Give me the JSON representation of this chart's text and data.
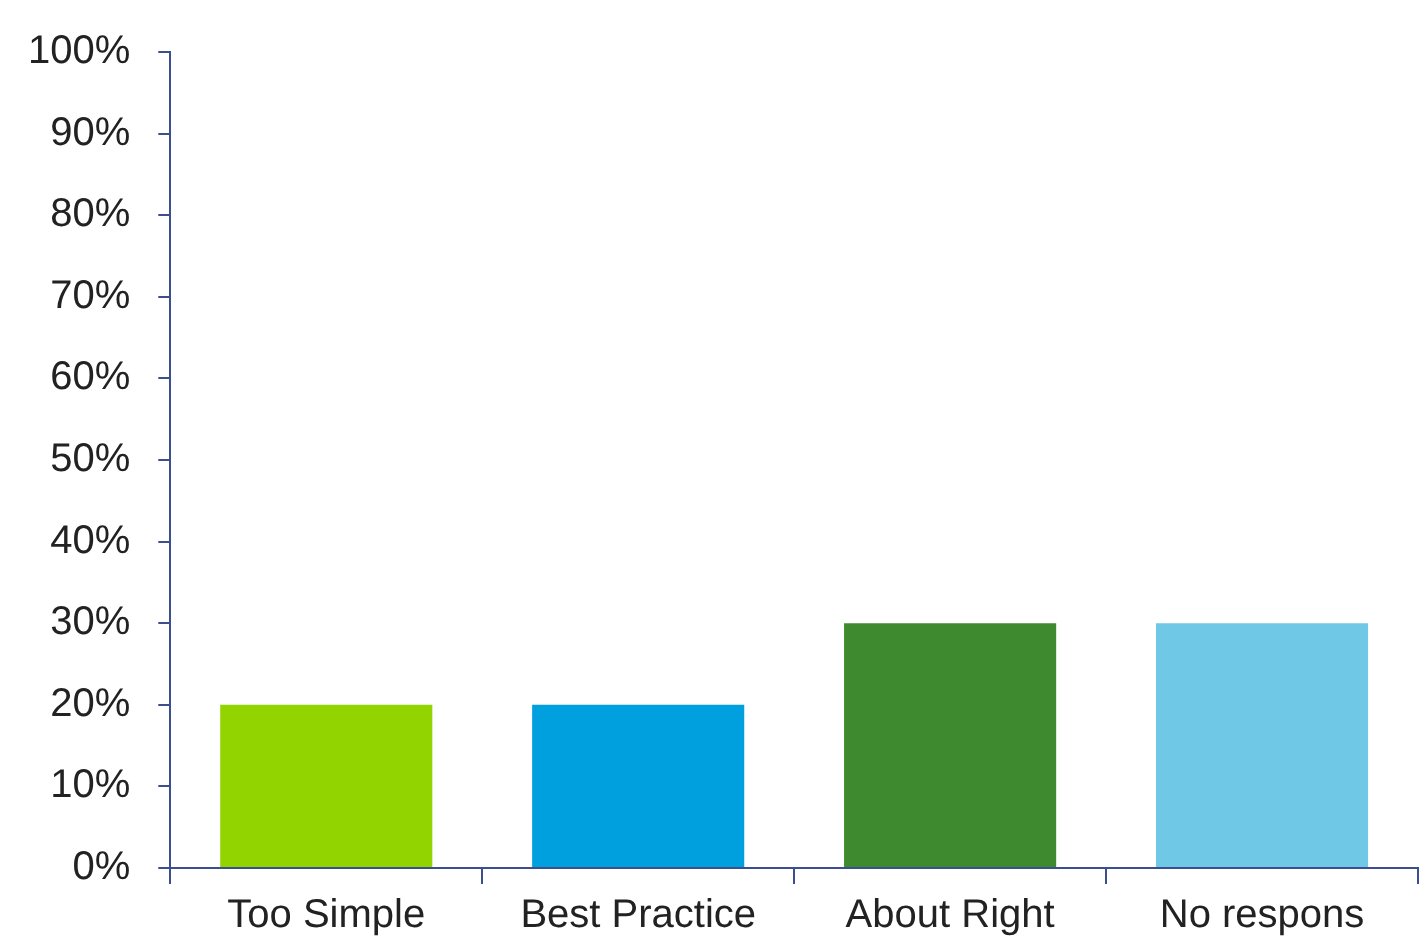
{
  "chart_data": {
    "type": "bar",
    "categories": [
      "Too Simple",
      "Best Practice",
      "About Right",
      "No respons"
    ],
    "values": [
      20,
      20,
      30,
      30
    ],
    "colors": [
      "#92d400",
      "#00a0df",
      "#3e8a2f",
      "#6fc8e6"
    ],
    "ylim": [
      0,
      100
    ],
    "yticks": [
      {
        "value": 0,
        "label": "0%"
      },
      {
        "value": 10,
        "label": "10%"
      },
      {
        "value": 20,
        "label": "20%"
      },
      {
        "value": 30,
        "label": "30%"
      },
      {
        "value": 40,
        "label": "40%"
      },
      {
        "value": 50,
        "label": "50%"
      },
      {
        "value": 60,
        "label": "60%"
      },
      {
        "value": 70,
        "label": "70%"
      },
      {
        "value": 80,
        "label": "80%"
      },
      {
        "value": 90,
        "label": "90%"
      },
      {
        "value": 100,
        "label": "100%"
      }
    ],
    "grid": false,
    "legend": false
  }
}
